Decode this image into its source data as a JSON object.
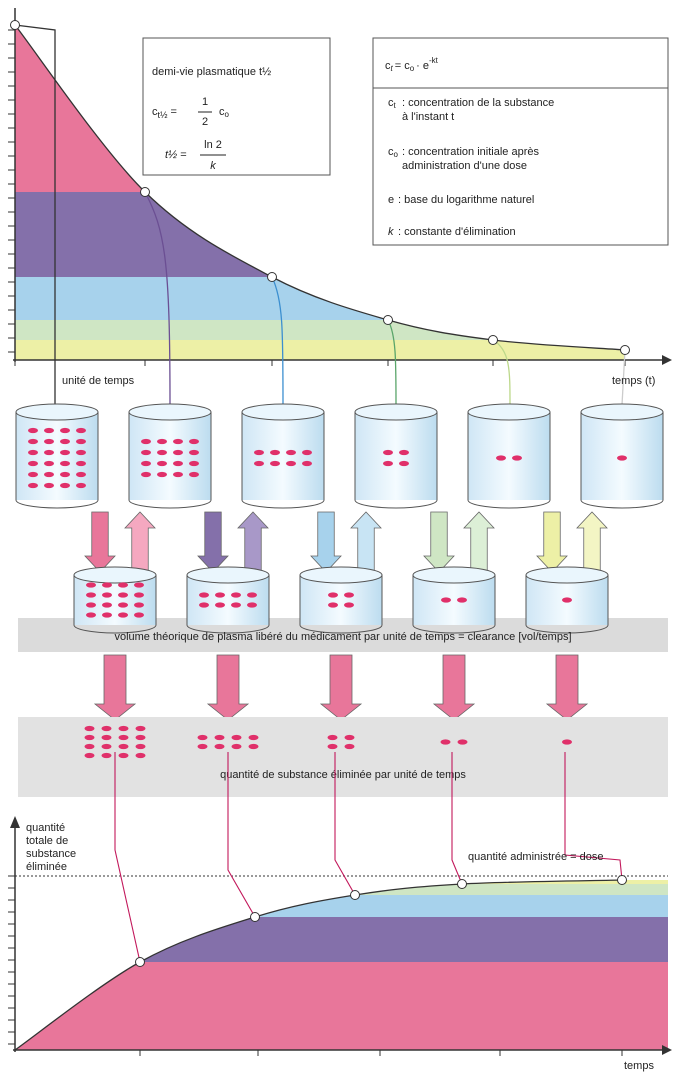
{
  "halflife_box": {
    "title": "demi-vie plasmatique t½",
    "formula1": {
      "c": "c",
      "sub": "t½",
      "eq": "=",
      "num": "1",
      "den": "2",
      "rhs": "c",
      "rhs_sub": "o"
    },
    "formula2": {
      "lhs": "t½",
      "eq": "=",
      "num": "ln 2",
      "den": "k"
    }
  },
  "legend_box": {
    "formula": {
      "c": "c",
      "sub": "t",
      "eq": "= c",
      "sub2": "o",
      "rest": "· e",
      "sup": "-kt"
    },
    "items": [
      {
        "symbol": "c",
        "sub": "t",
        "lines": [
          ": concentration de la substance",
          "à l'instant t"
        ]
      },
      {
        "symbol": "c",
        "sub": "o",
        "lines": [
          ": concentration initiale après",
          "administration d'une dose"
        ]
      },
      {
        "symbol": "e",
        "lines": [
          ": base du logarithme naturel"
        ]
      },
      {
        "symbol": "k",
        "lines": [
          ": constante d'élimination"
        ]
      }
    ]
  },
  "top_chart": {
    "x_label_left": "unité de temps",
    "x_label_right": "temps (t)"
  },
  "clearance_label": "volume théorique de plasma libéré du médicament par unité de temps = clearance [vol/temps]",
  "eliminated_label": "quantité de substance éliminée par unité de temps",
  "bottom_chart": {
    "y_label": [
      "quantité",
      "totale de",
      "substance",
      "éliminée"
    ],
    "dose_label": "quantité administrée = dose",
    "x_label": "temps"
  }
}
